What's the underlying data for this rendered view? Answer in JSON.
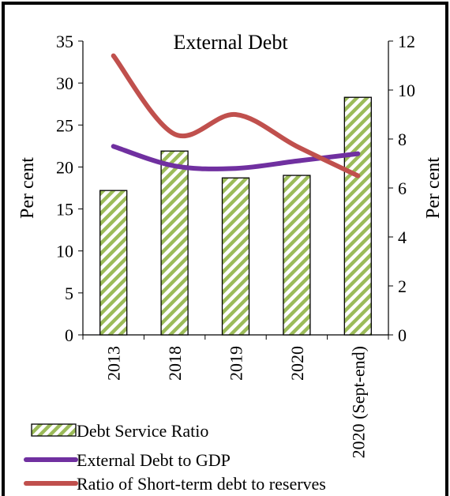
{
  "chart_data": {
    "type": "bar",
    "title": "External Debt",
    "categories": [
      "2013",
      "2018",
      "2019",
      "2020",
      "2020 (Sept-end)"
    ],
    "y_left": {
      "label": "Per cent",
      "min": 0,
      "max": 35,
      "ticks": [
        0,
        5,
        10,
        15,
        20,
        25,
        30,
        35
      ]
    },
    "y_right": {
      "label": "Per cent",
      "min": 0,
      "max": 12,
      "ticks": [
        0,
        2,
        4,
        6,
        8,
        10,
        12
      ]
    },
    "bars": {
      "name": "Debt Service Ratio",
      "axis": "left",
      "values": [
        17.2,
        21.9,
        18.7,
        19.0,
        28.3
      ]
    },
    "lines": [
      {
        "name": "External Debt to GDP",
        "axis": "right",
        "values": [
          7.7,
          6.9,
          6.8,
          7.1,
          7.4
        ],
        "color": "#7030a0"
      },
      {
        "name": "Ratio of Short-term debt to reserves",
        "axis": "right",
        "values": [
          11.4,
          8.2,
          9.0,
          7.7,
          6.5
        ],
        "color": "#c0504d"
      }
    ],
    "bar_pattern_colors": [
      "#9bbb59",
      "#ffffff"
    ],
    "legend_position": "bottom",
    "grid": false
  }
}
